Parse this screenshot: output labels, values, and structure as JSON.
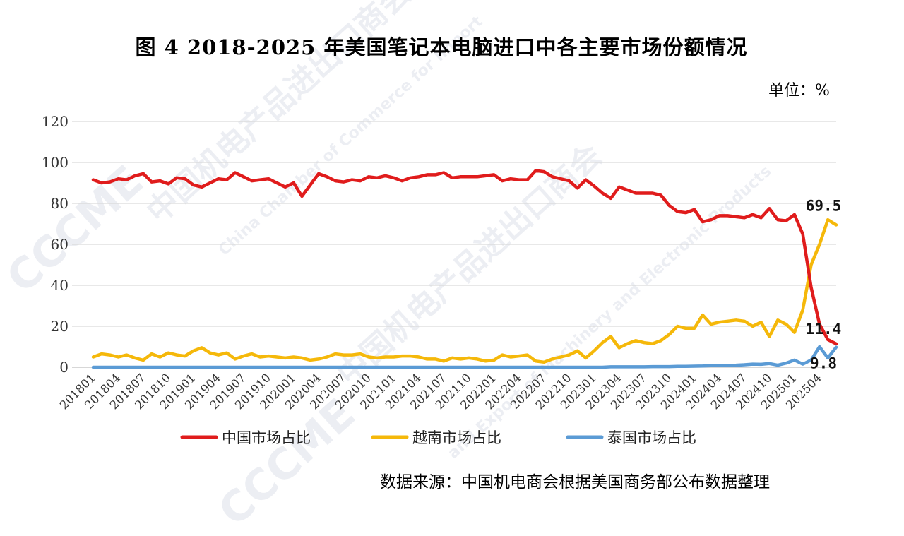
{
  "title": "图 4   2018-2025 年美国笔记本电脑进口中各主要市场份额情况",
  "unit": "单位：%",
  "source": "数据来源：中国机电商会根据美国商务部公布数据整理",
  "watermark": {
    "cn": "中国机电产品进出口商会",
    "en1": "China Chamber of Commerce for Import",
    "en2": "and Export of Machinery and Electronic Products",
    "logo": "CCCME"
  },
  "chart_data": {
    "type": "line",
    "title": "图 4   2018-2025 年美国笔记本电脑进口中各主要市场份额情况",
    "ylabel": "",
    "xlabel": "",
    "ylim": [
      0,
      120
    ],
    "yticks": [
      0,
      20,
      40,
      60,
      80,
      100,
      120
    ],
    "grid": true,
    "legend_position": "bottom",
    "x_tick_labels": [
      "201801",
      "201804",
      "201807",
      "201810",
      "201901",
      "201904",
      "201907",
      "201910",
      "202001",
      "202004",
      "202007",
      "202010",
      "202101",
      "202104",
      "202107",
      "202110",
      "202201",
      "202204",
      "202207",
      "202210",
      "202301",
      "202304",
      "202307",
      "202310",
      "202401",
      "202404",
      "202407",
      "202410",
      "202501",
      "202504"
    ],
    "x": [
      "201801",
      "201802",
      "201803",
      "201804",
      "201805",
      "201806",
      "201807",
      "201808",
      "201809",
      "201810",
      "201811",
      "201812",
      "201901",
      "201902",
      "201903",
      "201904",
      "201905",
      "201906",
      "201907",
      "201908",
      "201909",
      "201910",
      "201911",
      "201912",
      "202001",
      "202002",
      "202003",
      "202004",
      "202005",
      "202006",
      "202007",
      "202008",
      "202009",
      "202010",
      "202011",
      "202012",
      "202101",
      "202102",
      "202103",
      "202104",
      "202105",
      "202106",
      "202107",
      "202108",
      "202109",
      "202110",
      "202111",
      "202112",
      "202201",
      "202202",
      "202203",
      "202204",
      "202205",
      "202206",
      "202207",
      "202208",
      "202209",
      "202210",
      "202211",
      "202212",
      "202301",
      "202302",
      "202303",
      "202304",
      "202305",
      "202306",
      "202307",
      "202308",
      "202309",
      "202310",
      "202311",
      "202312",
      "202401",
      "202402",
      "202403",
      "202404",
      "202405",
      "202406",
      "202407",
      "202408",
      "202409",
      "202410",
      "202411",
      "202412",
      "202501",
      "202502",
      "202503",
      "202504",
      "202505",
      "202506"
    ],
    "series": [
      {
        "name": "中国市场占比",
        "color": "#e01c1c",
        "values": [
          91.5,
          90,
          90.5,
          92,
          91.5,
          93.5,
          94.5,
          90.5,
          91,
          89.5,
          92.5,
          92,
          89,
          88,
          90,
          92,
          91.5,
          95,
          93,
          91,
          91.5,
          92,
          90,
          88,
          90,
          83.5,
          89,
          94.5,
          93,
          91,
          90.5,
          91.5,
          91,
          93,
          92.5,
          93.5,
          92.5,
          91,
          92.5,
          93,
          94,
          94,
          95,
          92.5,
          93,
          93,
          93,
          93.5,
          94,
          91,
          92,
          91.5,
          91.5,
          96,
          95.5,
          93,
          92,
          91,
          87.5,
          91.5,
          88.5,
          85,
          82.5,
          88,
          86.5,
          85,
          85,
          85,
          84,
          79,
          76,
          75.5,
          77,
          71,
          72,
          74,
          74,
          73.5,
          73,
          74.5,
          73,
          77.5,
          72,
          71.5,
          74.5,
          65,
          39,
          21,
          13.5,
          11.4
        ]
      },
      {
        "name": "越南市场占比",
        "color": "#f5b80a",
        "values": [
          5,
          6.5,
          6,
          5,
          6,
          4.5,
          3.5,
          6.5,
          5,
          7,
          6,
          5.5,
          8,
          9.5,
          7,
          6,
          7,
          4,
          5.5,
          6.5,
          5,
          5.5,
          5,
          4.5,
          5,
          4.5,
          3.5,
          4,
          5,
          6.5,
          6,
          6,
          6.5,
          5,
          4.5,
          5,
          5,
          5.5,
          5.5,
          5,
          4,
          4,
          3,
          4.5,
          4,
          4.5,
          4,
          3,
          3.5,
          6,
          5,
          5.5,
          6,
          3,
          2.5,
          4,
          5,
          6,
          8,
          4.5,
          8,
          12,
          15,
          9.5,
          11.5,
          13,
          12,
          11.5,
          13,
          16,
          20,
          19,
          19,
          25.5,
          21,
          22,
          22.5,
          23,
          22.5,
          20,
          22,
          15,
          23,
          21,
          17,
          28,
          50,
          60,
          72,
          69.5
        ]
      },
      {
        "name": "泰国市场占比",
        "color": "#5b9bd5",
        "values": [
          0,
          0,
          0,
          0,
          0,
          0,
          0,
          0,
          0,
          0,
          0,
          0,
          0,
          0,
          0,
          0,
          0,
          0,
          0,
          0,
          0,
          0,
          0,
          0,
          0,
          0,
          0,
          0,
          0,
          0,
          0,
          0,
          0,
          0,
          0,
          0,
          0,
          0,
          0,
          0,
          0,
          0,
          0,
          0,
          0,
          0,
          0,
          0,
          0,
          0,
          0,
          0,
          0,
          0,
          0,
          0,
          0,
          0,
          0,
          0,
          0,
          0,
          0.2,
          0.2,
          0.2,
          0.2,
          0.2,
          0.3,
          0.3,
          0.3,
          0.4,
          0.4,
          0.5,
          0.6,
          0.8,
          0.8,
          0.9,
          1,
          1.2,
          1.5,
          1.4,
          1.8,
          1,
          2,
          3.5,
          1.5,
          3.5,
          10,
          4.5,
          9.8
        ]
      }
    ],
    "annotations": [
      {
        "series": "越南市场占比",
        "x": "202506",
        "text": "69.5"
      },
      {
        "series": "中国市场占比",
        "x": "202506",
        "text": "11.4"
      },
      {
        "series": "泰国市场占比",
        "x": "202506",
        "text": "9.8"
      }
    ]
  }
}
